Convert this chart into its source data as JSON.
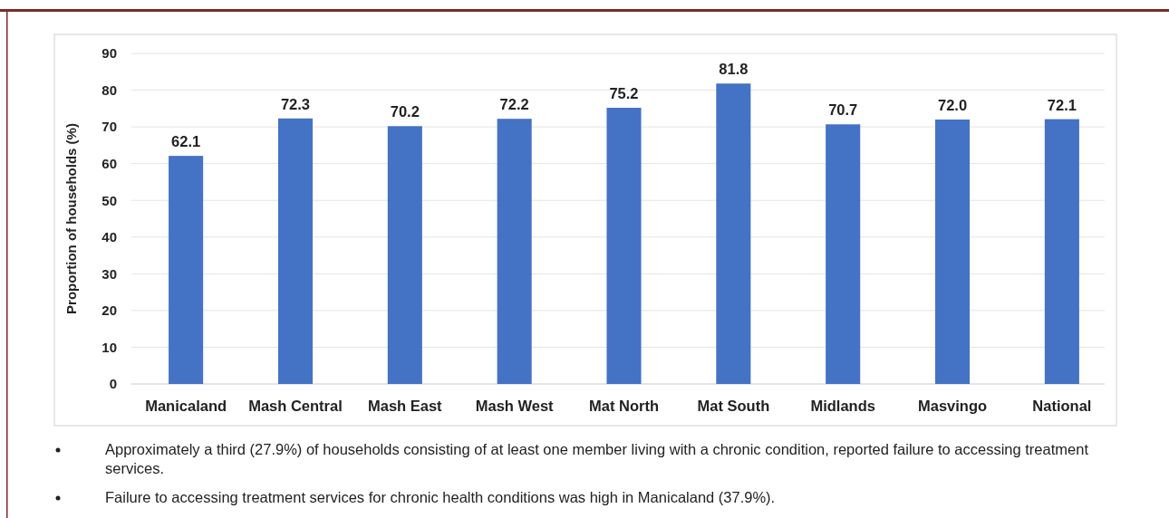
{
  "chart_data": {
    "type": "bar",
    "ylabel": "Proportion of households (%)",
    "categories": [
      "Manicaland",
      "Mash Central",
      "Mash East",
      "Mash West",
      "Mat North",
      "Mat South",
      "Midlands",
      "Masvingo",
      "National"
    ],
    "values": [
      62.1,
      72.3,
      70.2,
      72.2,
      75.2,
      81.8,
      70.7,
      72.0,
      72.1
    ],
    "value_labels": [
      "62.1",
      "72.3",
      "70.2",
      "72.2",
      "75.2",
      "81.8",
      "70.7",
      "72.0",
      "72.1"
    ],
    "color": "#4472c4",
    "ylim": [
      0,
      90
    ],
    "yticks": [
      0,
      10,
      20,
      30,
      40,
      50,
      60,
      70,
      80,
      90
    ],
    "grid": "y",
    "annotations": [
      "Approximately  a third (27.9%) of households consisting of at least one member living with a chronic condition, reported failure to accessing treatment services.",
      "Failure to accessing treatment services for chronic health conditions was high in Manicaland (37.9%)."
    ]
  }
}
